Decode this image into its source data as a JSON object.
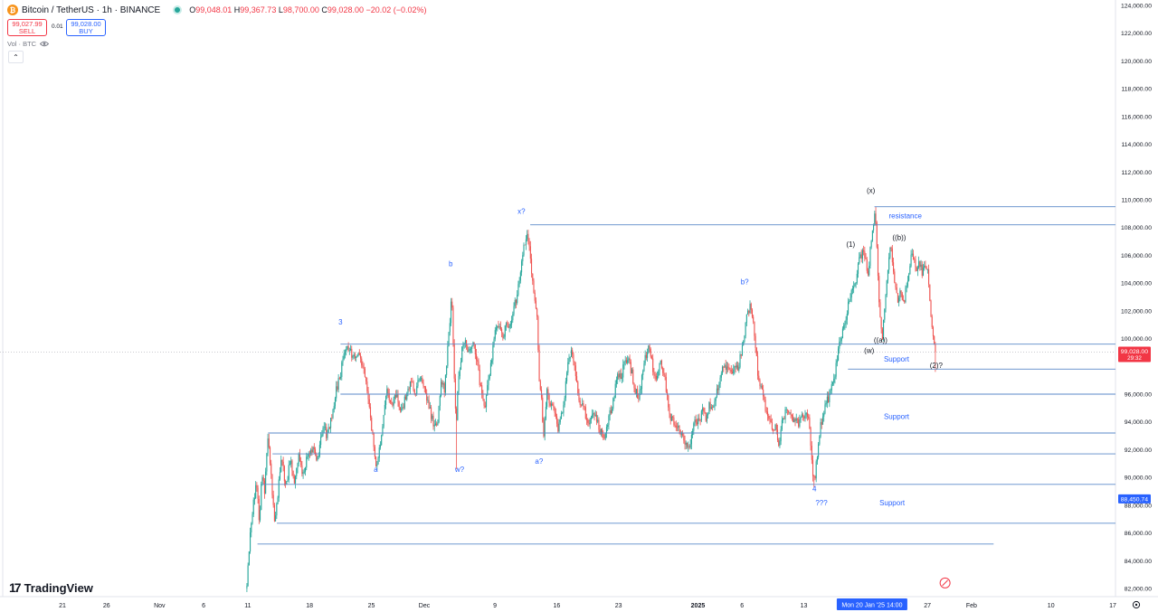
{
  "header": {
    "coin_glyph": "₿",
    "symbol": "Bitcoin / TetherUS · 1h · BINANCE",
    "open_label": "O",
    "open": "99,048.01",
    "high_label": "H",
    "high": "99,367.73",
    "low_label": "L",
    "low": "98,700.00",
    "close_label": "C",
    "close": "99,028.00",
    "change": "−20.02 (−0.02%)"
  },
  "trade": {
    "sell_price": "99,027.99",
    "sell_label": "SELL",
    "spread": "0.01",
    "buy_price": "99,028.00",
    "buy_label": "BUY"
  },
  "indicator": {
    "vol_label": "Vol · BTC",
    "eye_icon": "eye-icon",
    "collapse_glyph": "⌃"
  },
  "branding": {
    "logo_mark": "17",
    "name": "TradingView"
  },
  "colors": {
    "up": "#26a69a",
    "down": "#ef5350",
    "line": "#5b8ac9",
    "label_blue": "#2962ff",
    "price_tag": "#f23645",
    "time_tag": "#2962ff"
  },
  "chart_data": {
    "type": "candlestick",
    "instrument": "Bitcoin / TetherUS",
    "interval": "1h",
    "exchange": "BINANCE",
    "ylim": [
      82000,
      124000
    ],
    "y_ticks": [
      {
        "v": 124000,
        "label": "124,000.00"
      },
      {
        "v": 122000,
        "label": "122,000.00"
      },
      {
        "v": 120000,
        "label": "120,000.00"
      },
      {
        "v": 118000,
        "label": "118,000.00"
      },
      {
        "v": 116000,
        "label": "116,000.00"
      },
      {
        "v": 114000,
        "label": "114,000.00"
      },
      {
        "v": 112000,
        "label": "112,000.00"
      },
      {
        "v": 110000,
        "label": "110,000.00"
      },
      {
        "v": 108000,
        "label": "108,000.00"
      },
      {
        "v": 106000,
        "label": "106,000.00"
      },
      {
        "v": 104000,
        "label": "104,000.00"
      },
      {
        "v": 102000,
        "label": "102,000.00"
      },
      {
        "v": 100000,
        "label": "100,000.00"
      },
      {
        "v": 96000,
        "label": "96,000.00"
      },
      {
        "v": 94000,
        "label": "94,000.00"
      },
      {
        "v": 92000,
        "label": "92,000.00"
      },
      {
        "v": 90000,
        "label": "90,000.00"
      },
      {
        "v": 88000,
        "label": "88,000.00"
      },
      {
        "v": 86000,
        "label": "86,000.00"
      },
      {
        "v": 84000,
        "label": "84,000.00"
      },
      {
        "v": 82000,
        "label": "82,000.00"
      }
    ],
    "x_ticks": [
      {
        "t": -8,
        "label": "21",
        "bold": false
      },
      {
        "t": -3,
        "label": "26",
        "bold": false
      },
      {
        "t": 3,
        "label": "Nov",
        "bold": false
      },
      {
        "t": 8,
        "label": "6",
        "bold": false
      },
      {
        "t": 13,
        "label": "11",
        "bold": false
      },
      {
        "t": 20,
        "label": "18",
        "bold": false
      },
      {
        "t": 27,
        "label": "25",
        "bold": false
      },
      {
        "t": 33,
        "label": "Dec",
        "bold": false
      },
      {
        "t": 41,
        "label": "9",
        "bold": false
      },
      {
        "t": 48,
        "label": "16",
        "bold": false
      },
      {
        "t": 55,
        "label": "23",
        "bold": false
      },
      {
        "t": 64,
        "label": "2025",
        "bold": true
      },
      {
        "t": 69,
        "label": "6",
        "bold": false
      },
      {
        "t": 76,
        "label": "13",
        "bold": false
      },
      {
        "t": 90,
        "label": "27",
        "bold": false
      },
      {
        "t": 95,
        "label": "Feb",
        "bold": false
      },
      {
        "t": 104,
        "label": "10",
        "bold": false
      },
      {
        "t": 111,
        "label": "17",
        "bold": false
      }
    ],
    "x_range": [
      -8.75,
      114.5
    ],
    "current_price": {
      "value": 99028.0,
      "label": "99,028.00",
      "countdown": "29:32"
    },
    "crosshair": {
      "price": 88450.74,
      "label": "88,450.74",
      "time_label": "Mon 20 Jan '25   14:00",
      "t": 82.6
    },
    "path": [
      [
        12.9,
        82300
      ],
      [
        13.3,
        86500
      ],
      [
        13.6,
        88000
      ],
      [
        14.0,
        89800
      ],
      [
        14.3,
        86500
      ],
      [
        14.6,
        90500
      ],
      [
        14.9,
        89000
      ],
      [
        15.3,
        93200
      ],
      [
        15.7,
        89500
      ],
      [
        16.0,
        86800
      ],
      [
        16.4,
        88800
      ],
      [
        16.8,
        91600
      ],
      [
        17.3,
        89300
      ],
      [
        17.8,
        91200
      ],
      [
        18.3,
        89800
      ],
      [
        18.8,
        91600
      ],
      [
        19.3,
        90000
      ],
      [
        19.8,
        91800
      ],
      [
        20.4,
        92000
      ],
      [
        20.9,
        91200
      ],
      [
        21.5,
        93800
      ],
      [
        22.0,
        92900
      ],
      [
        22.5,
        94500
      ],
      [
        23.1,
        96500
      ],
      [
        23.5,
        97400
      ],
      [
        23.9,
        99000
      ],
      [
        24.4,
        99400
      ],
      [
        25.0,
        98600
      ],
      [
        25.6,
        98700
      ],
      [
        26.2,
        97500
      ],
      [
        26.6,
        95800
      ],
      [
        27.0,
        93700
      ],
      [
        27.3,
        92100
      ],
      [
        27.6,
        90800
      ],
      [
        28.0,
        92400
      ],
      [
        28.5,
        95000
      ],
      [
        28.8,
        96300
      ],
      [
        29.3,
        95300
      ],
      [
        29.8,
        96100
      ],
      [
        30.4,
        94800
      ],
      [
        31.0,
        96000
      ],
      [
        31.5,
        97000
      ],
      [
        32.0,
        96100
      ],
      [
        32.5,
        97200
      ],
      [
        33.0,
        96500
      ],
      [
        33.5,
        95100
      ],
      [
        34.0,
        94000
      ],
      [
        34.5,
        93800
      ],
      [
        34.9,
        97000
      ],
      [
        35.3,
        96400
      ],
      [
        35.6,
        99000
      ],
      [
        35.9,
        101000
      ],
      [
        36.1,
        103200
      ],
      [
        36.4,
        97200
      ],
      [
        36.6,
        93400
      ],
      [
        36.8,
        96800
      ],
      [
        37.2,
        98900
      ],
      [
        37.6,
        100000
      ],
      [
        38.0,
        98900
      ],
      [
        38.4,
        99800
      ],
      [
        38.8,
        99000
      ],
      [
        39.1,
        97700
      ],
      [
        39.5,
        96000
      ],
      [
        39.9,
        95200
      ],
      [
        40.3,
        97000
      ],
      [
        40.7,
        98900
      ],
      [
        41.1,
        101000
      ],
      [
        41.5,
        100900
      ],
      [
        41.9,
        99800
      ],
      [
        42.3,
        101200
      ],
      [
        42.7,
        101000
      ],
      [
        43.1,
        102300
      ],
      [
        43.5,
        103000
      ],
      [
        43.9,
        104800
      ],
      [
        44.2,
        106500
      ],
      [
        44.6,
        107500
      ],
      [
        44.9,
        106500
      ],
      [
        45.2,
        104600
      ],
      [
        45.5,
        103000
      ],
      [
        45.8,
        101200
      ],
      [
        46.0,
        97000
      ],
      [
        46.3,
        95300
      ],
      [
        46.5,
        93000
      ],
      [
        46.9,
        96200
      ],
      [
        47.3,
        95200
      ],
      [
        47.7,
        94800
      ],
      [
        48.1,
        93500
      ],
      [
        48.5,
        94300
      ],
      [
        48.9,
        96000
      ],
      [
        49.3,
        98800
      ],
      [
        49.7,
        99000
      ],
      [
        50.1,
        97700
      ],
      [
        50.5,
        95200
      ],
      [
        50.9,
        95500
      ],
      [
        51.3,
        94500
      ],
      [
        51.7,
        94000
      ],
      [
        52.1,
        94600
      ],
      [
        52.5,
        94200
      ],
      [
        52.9,
        93400
      ],
      [
        53.3,
        92800
      ],
      [
        53.7,
        93900
      ],
      [
        54.1,
        94800
      ],
      [
        54.5,
        95800
      ],
      [
        54.9,
        97500
      ],
      [
        55.3,
        97000
      ],
      [
        55.7,
        98700
      ],
      [
        56.1,
        98400
      ],
      [
        56.5,
        97600
      ],
      [
        56.9,
        96200
      ],
      [
        57.3,
        95800
      ],
      [
        57.7,
        97300
      ],
      [
        58.1,
        98800
      ],
      [
        58.5,
        99500
      ],
      [
        58.9,
        97800
      ],
      [
        59.3,
        97200
      ],
      [
        59.7,
        98400
      ],
      [
        60.1,
        97700
      ],
      [
        60.5,
        96000
      ],
      [
        60.9,
        94200
      ],
      [
        61.3,
        94000
      ],
      [
        61.7,
        93800
      ],
      [
        62.1,
        93300
      ],
      [
        62.5,
        92500
      ],
      [
        62.9,
        92300
      ],
      [
        63.3,
        92800
      ],
      [
        63.7,
        94300
      ],
      [
        64.1,
        94000
      ],
      [
        64.5,
        94800
      ],
      [
        64.9,
        94300
      ],
      [
        65.3,
        95200
      ],
      [
        65.7,
        94800
      ],
      [
        66.1,
        96100
      ],
      [
        66.5,
        97000
      ],
      [
        66.9,
        98200
      ],
      [
        67.3,
        97900
      ],
      [
        67.7,
        97500
      ],
      [
        68.1,
        98100
      ],
      [
        68.5,
        97800
      ],
      [
        68.9,
        99000
      ],
      [
        69.3,
        100500
      ],
      [
        69.6,
        101800
      ],
      [
        69.9,
        102300
      ],
      [
        70.2,
        101800
      ],
      [
        70.5,
        99800
      ],
      [
        70.8,
        97300
      ],
      [
        71.2,
        96500
      ],
      [
        71.6,
        95100
      ],
      [
        72.0,
        94300
      ],
      [
        72.4,
        93400
      ],
      [
        72.8,
        93600
      ],
      [
        73.2,
        92300
      ],
      [
        73.5,
        93800
      ],
      [
        73.9,
        94600
      ],
      [
        74.3,
        94900
      ],
      [
        74.7,
        94300
      ],
      [
        75.1,
        94300
      ],
      [
        75.4,
        93700
      ],
      [
        75.8,
        94600
      ],
      [
        76.2,
        94300
      ],
      [
        76.5,
        94800
      ],
      [
        76.8,
        91800
      ],
      [
        77.0,
        90500
      ],
      [
        77.2,
        89700
      ],
      [
        77.5,
        91500
      ],
      [
        77.9,
        93700
      ],
      [
        78.3,
        94800
      ],
      [
        78.7,
        95600
      ],
      [
        79.1,
        96300
      ],
      [
        79.5,
        97200
      ],
      [
        79.9,
        99300
      ],
      [
        80.3,
        100400
      ],
      [
        80.7,
        101400
      ],
      [
        81.1,
        102700
      ],
      [
        81.5,
        103400
      ],
      [
        81.9,
        104300
      ],
      [
        82.3,
        105900
      ],
      [
        82.7,
        106200
      ],
      [
        83.0,
        105600
      ],
      [
        83.3,
        104800
      ],
      [
        83.6,
        106900
      ],
      [
        83.9,
        108200
      ],
      [
        84.1,
        109300
      ],
      [
        84.3,
        106200
      ],
      [
        84.5,
        103100
      ],
      [
        84.7,
        101000
      ],
      [
        84.9,
        100200
      ],
      [
        85.2,
        102400
      ],
      [
        85.5,
        104700
      ],
      [
        85.8,
        107000
      ],
      [
        86.1,
        104800
      ],
      [
        86.4,
        104000
      ],
      [
        86.7,
        102700
      ],
      [
        87.0,
        103500
      ],
      [
        87.3,
        102500
      ],
      [
        87.6,
        103700
      ],
      [
        87.9,
        104600
      ],
      [
        88.2,
        106200
      ],
      [
        88.5,
        105700
      ],
      [
        88.8,
        105000
      ],
      [
        89.1,
        105500
      ],
      [
        89.4,
        104700
      ],
      [
        89.7,
        105300
      ],
      [
        90.0,
        105000
      ],
      [
        90.3,
        102600
      ],
      [
        90.6,
        100200
      ],
      [
        90.9,
        99028
      ]
    ],
    "horizontal_lines": [
      {
        "y": 99600,
        "t0": 23.5,
        "t1": 114.5
      },
      {
        "y": 97800,
        "t0": 81.0,
        "t1": 114.5
      },
      {
        "y": 96000,
        "t0": 23.5,
        "t1": 114.5
      },
      {
        "y": 93200,
        "t0": 15.3,
        "t1": 114.5
      },
      {
        "y": 91700,
        "t0": 15.8,
        "t1": 114.5
      },
      {
        "y": 89500,
        "t0": 14.6,
        "t1": 114.5
      },
      {
        "y": 86700,
        "t0": 16.3,
        "t1": 114.5
      },
      {
        "y": 85200,
        "t0": 14.1,
        "t1": 97.5
      },
      {
        "y": 108200,
        "t0": 45.0,
        "t1": 114.5
      },
      {
        "y": 109500,
        "t0": 84.0,
        "t1": 114.5
      }
    ],
    "annotations": [
      {
        "text": "3",
        "t": 23.5,
        "y": 101000,
        "color": "#2962ff"
      },
      {
        "text": "a",
        "t": 27.5,
        "y": 90400,
        "color": "#2962ff"
      },
      {
        "text": "b",
        "t": 36.0,
        "y": 105200,
        "color": "#2962ff"
      },
      {
        "text": "w?",
        "t": 37.0,
        "y": 90400,
        "color": "#2962ff"
      },
      {
        "text": "x?",
        "t": 44.0,
        "y": 109000,
        "color": "#2962ff"
      },
      {
        "text": "a?",
        "t": 46.0,
        "y": 91000,
        "color": "#2962ff"
      },
      {
        "text": "b?",
        "t": 69.3,
        "y": 103900,
        "color": "#2962ff"
      },
      {
        "text": "4",
        "t": 77.2,
        "y": 89000,
        "color": "#2962ff"
      },
      {
        "text": "???",
        "t": 78.0,
        "y": 88000,
        "color": "#2962ff"
      },
      {
        "text": "(1)",
        "t": 81.3,
        "y": 106600,
        "color": "#131722"
      },
      {
        "text": "(x)",
        "t": 83.6,
        "y": 110500,
        "color": "#131722"
      },
      {
        "text": "((b))",
        "t": 86.8,
        "y": 107100,
        "color": "#131722"
      },
      {
        "text": "((a))",
        "t": 84.7,
        "y": 99700,
        "color": "#131722"
      },
      {
        "text": "(w)",
        "t": 83.4,
        "y": 98950,
        "color": "#131722"
      },
      {
        "text": "(2)?",
        "t": 91.0,
        "y": 97900,
        "color": "#131722"
      },
      {
        "text": "resistance",
        "t": 87.5,
        "y": 108650,
        "color": "#2962ff"
      },
      {
        "text": "Support",
        "t": 86.5,
        "y": 98350,
        "color": "#2962ff"
      },
      {
        "text": "Support",
        "t": 86.5,
        "y": 94200,
        "color": "#2962ff"
      },
      {
        "text": "Support",
        "t": 86.0,
        "y": 88000,
        "color": "#2962ff"
      }
    ]
  }
}
